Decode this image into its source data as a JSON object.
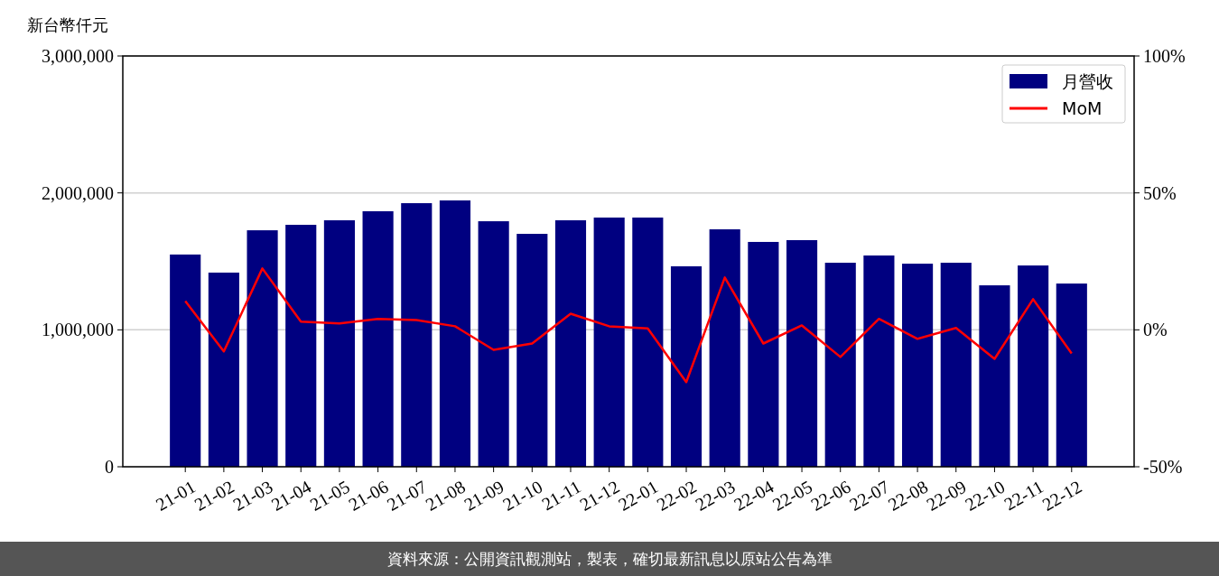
{
  "chart_data": {
    "type": "bar",
    "ylabel": "新台幣仟元",
    "categories": [
      "21-01",
      "21-02",
      "21-03",
      "21-04",
      "21-05",
      "21-06",
      "21-07",
      "21-08",
      "21-09",
      "21-10",
      "21-11",
      "21-12",
      "22-01",
      "22-02",
      "22-03",
      "22-04",
      "22-05",
      "22-06",
      "22-07",
      "22-08",
      "22-09",
      "22-10",
      "22-11",
      "22-12"
    ],
    "series": [
      {
        "name": "月營收",
        "color": "#000080",
        "values": [
          1550000,
          1418000,
          1727000,
          1767000,
          1800000,
          1866000,
          1925000,
          1945000,
          1793000,
          1701000,
          1800000,
          1820000,
          1820000,
          1464000,
          1734000,
          1642000,
          1655000,
          1490000,
          1543000,
          1483000,
          1490000,
          1325000,
          1470000,
          1338000
        ]
      },
      {
        "name": "MoM",
        "type": "line",
        "axis": "y2",
        "color": "#ff0000",
        "values": [
          10.5,
          -7.9,
          22.4,
          3.0,
          2.3,
          4.0,
          3.6,
          1.3,
          -7.3,
          -5.0,
          5.9,
          1.3,
          0.5,
          -19.1,
          19.1,
          -5.0,
          1.6,
          -9.9,
          4.0,
          -3.3,
          0.7,
          -10.6,
          11.2,
          -8.6
        ]
      }
    ],
    "ylim": [
      0,
      3000000
    ],
    "yticks": [
      {
        "value": 0,
        "label": "0"
      },
      {
        "value": 1000000,
        "label": "1,000,000"
      },
      {
        "value": 2000000,
        "label": "2,000,000"
      },
      {
        "value": 3000000,
        "label": "3,000,000"
      }
    ],
    "y2lim": [
      -50,
      100
    ],
    "y2ticks": [
      {
        "value": -50,
        "label": "-50%"
      },
      {
        "value": 0,
        "label": "0%"
      },
      {
        "value": 50,
        "label": "50%"
      },
      {
        "value": 100,
        "label": "100%"
      }
    ],
    "grid": "y",
    "legend": "top right",
    "annotations": [
      "資料來源：公開資訊觀測站，製表，確切最新訊息以原站公告為準"
    ]
  }
}
